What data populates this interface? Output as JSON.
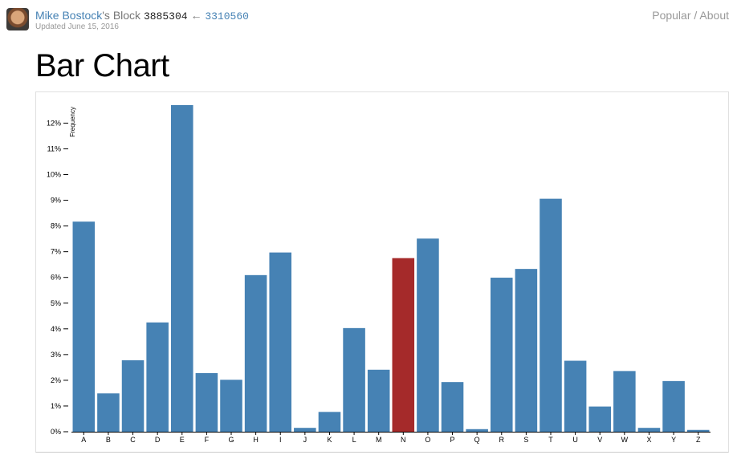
{
  "header": {
    "author": "Mike Bostock",
    "author_suffix": "'s Block",
    "block_id": "3885304",
    "arrow": "←",
    "parent_id": "3310560",
    "updated": "Updated June 15, 2016",
    "nav_popular": "Popular",
    "nav_sep": " / ",
    "nav_about": "About"
  },
  "page": {
    "title": "Bar Chart"
  },
  "colors": {
    "bar": "#4682b4",
    "highlight": "#a52a2a"
  },
  "chart_data": {
    "type": "bar",
    "title": "",
    "xlabel": "",
    "ylabel": "Frequency",
    "categories": [
      "A",
      "B",
      "C",
      "D",
      "E",
      "F",
      "G",
      "H",
      "I",
      "J",
      "K",
      "L",
      "M",
      "N",
      "O",
      "P",
      "Q",
      "R",
      "S",
      "T",
      "U",
      "V",
      "W",
      "X",
      "Y",
      "Z"
    ],
    "values": [
      8.17,
      1.49,
      2.78,
      4.25,
      12.7,
      2.28,
      2.02,
      6.09,
      6.97,
      0.15,
      0.77,
      4.03,
      2.41,
      6.75,
      7.51,
      1.93,
      0.1,
      5.99,
      6.33,
      9.06,
      2.76,
      0.98,
      2.36,
      0.15,
      1.97,
      0.07
    ],
    "highlighted_category": "N",
    "ylim": [
      0,
      12.7
    ],
    "y_ticks": [
      "0%",
      "1%",
      "2%",
      "3%",
      "4%",
      "5%",
      "6%",
      "7%",
      "8%",
      "9%",
      "10%",
      "11%",
      "12%"
    ],
    "grid": false
  }
}
